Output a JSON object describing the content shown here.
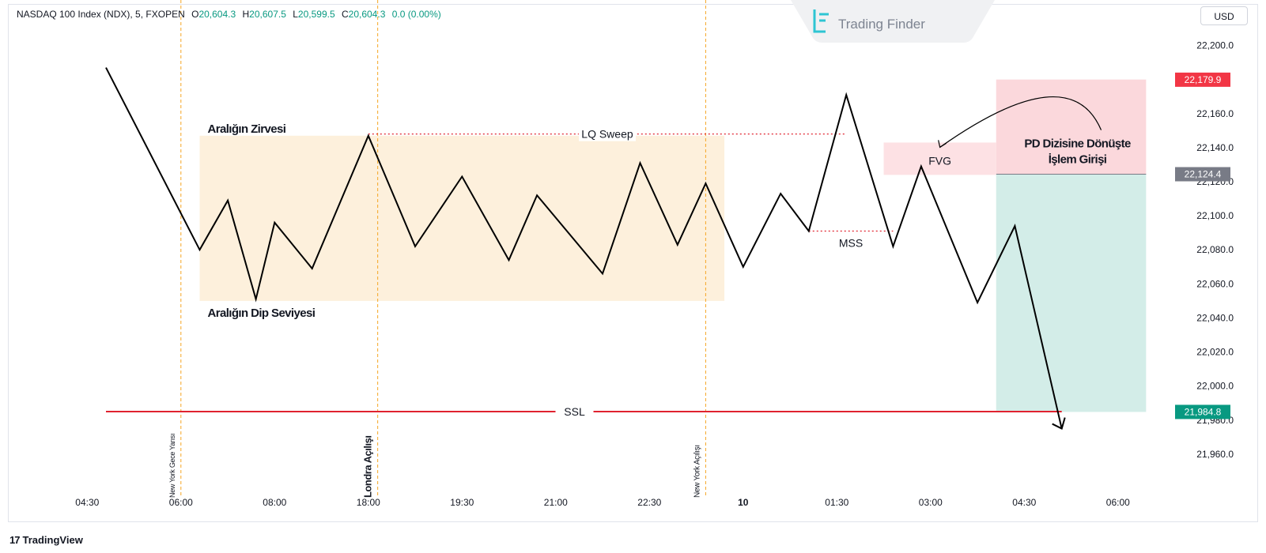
{
  "header": {
    "symbol": "NASDAQ 100 Index (NDX), 5, FXOPEN",
    "ohlc": [
      {
        "label": "O",
        "value": "20,604.3"
      },
      {
        "label": "H",
        "value": "20,607.5"
      },
      {
        "label": "L",
        "value": "20,599.5"
      },
      {
        "label": "C",
        "value": "20,604.3"
      }
    ],
    "change": "0.0 (0.00%)"
  },
  "currency_button": "USD",
  "watermark": "Trading Finder",
  "footer": {
    "logo": "17",
    "brand": "TradingView"
  },
  "colors": {
    "up": "#089981",
    "down": "#f23645",
    "range_box": "#fdf0dc",
    "fvg_box": "#fde1e4",
    "stop_zone": "#fbd8dc",
    "target_zone": "#d3ede8",
    "session_line": "#f5a623",
    "ssl_line": "#e0222f",
    "sweep_line": "#e0222f",
    "price_line": "#000000",
    "entry_badge": "#787b86"
  },
  "chart_data": {
    "type": "line",
    "title": "",
    "ylim": [
      21940,
      22210
    ],
    "y_ticks": [
      "22,200.0",
      "22,160.0",
      "22,140.0",
      "22,120.0",
      "22,100.0",
      "22,080.0",
      "22,060.0",
      "22,040.0",
      "22,020.0",
      "22,000.0",
      "21,980.0",
      "21,960.0"
    ],
    "y_tick_values": [
      22200,
      22160,
      22140,
      22120,
      22100,
      22080,
      22060,
      22040,
      22020,
      22000,
      21980,
      21960
    ],
    "x_ticks": [
      "04:30",
      "06:00",
      "08:00",
      "18:00",
      "19:30",
      "21:00",
      "22:30",
      "10",
      "01:30",
      "03:00",
      "04:30",
      "06:00"
    ],
    "x_bold_tick": "10",
    "price_path": [
      {
        "t": 0.0,
        "y": 22187
      },
      {
        "t": 1.0,
        "y": 22080
      },
      {
        "t": 1.3,
        "y": 22109
      },
      {
        "t": 1.6,
        "y": 22051
      },
      {
        "t": 1.8,
        "y": 22096
      },
      {
        "t": 2.2,
        "y": 22069
      },
      {
        "t": 2.8,
        "y": 22147
      },
      {
        "t": 3.3,
        "y": 22082
      },
      {
        "t": 3.8,
        "y": 22123
      },
      {
        "t": 4.3,
        "y": 22074
      },
      {
        "t": 4.6,
        "y": 22112
      },
      {
        "t": 5.3,
        "y": 22066
      },
      {
        "t": 5.7,
        "y": 22131
      },
      {
        "t": 6.1,
        "y": 22083
      },
      {
        "t": 6.4,
        "y": 22119
      },
      {
        "t": 6.8,
        "y": 22070
      },
      {
        "t": 7.2,
        "y": 22113
      },
      {
        "t": 7.5,
        "y": 22091
      },
      {
        "t": 7.9,
        "y": 22171
      },
      {
        "t": 8.4,
        "y": 22082
      },
      {
        "t": 8.7,
        "y": 22129
      },
      {
        "t": 9.3,
        "y": 22049
      },
      {
        "t": 9.7,
        "y": 22094
      },
      {
        "t": 10.2,
        "y": 21975
      }
    ],
    "range_box": {
      "t_start": 1.0,
      "t_end": 6.6,
      "top": 22147,
      "bottom": 22050
    },
    "fvg": {
      "t_start": 8.3,
      "t_end": 9.5,
      "top": 22143,
      "bottom": 22124,
      "label": "FVG"
    },
    "position": {
      "t_start": 9.5,
      "t_end": 11.1,
      "stop": 22180,
      "entry": 22124.4,
      "target": 21984.8
    },
    "liquidity_sweep": {
      "level": 22148,
      "t_start": 2.8,
      "t_end": 7.9,
      "label": "LQ Sweep"
    },
    "mss": {
      "level": 22091,
      "t_start": 7.5,
      "t_end": 8.4,
      "label": "MSS"
    },
    "ssl": {
      "level": 21985,
      "t_start": 0.0,
      "t_end": 10.2,
      "label": "SSL"
    },
    "sessions": [
      {
        "t": 0.8,
        "label": "New York Gece Yarısı"
      },
      {
        "t": 2.9,
        "label": "Londra Açılışı"
      },
      {
        "t": 6.4,
        "label": "New York Açılışı"
      }
    ],
    "price_badges": [
      {
        "value": 22179.9,
        "label": "22,179.9",
        "color": "#f23645"
      },
      {
        "value": 22124.4,
        "label": "22,124.4",
        "color": "#787b86"
      },
      {
        "value": 21984.8,
        "label": "21,984.8",
        "color": "#089981"
      }
    ],
    "annotations": {
      "range_top": "Aralığın Zirvesi",
      "range_bottom": "Aralığın Dip Seviyesi",
      "entry_line1": "PD Dizisine Dönüşte",
      "entry_line2": "İşlem Girişi"
    }
  }
}
